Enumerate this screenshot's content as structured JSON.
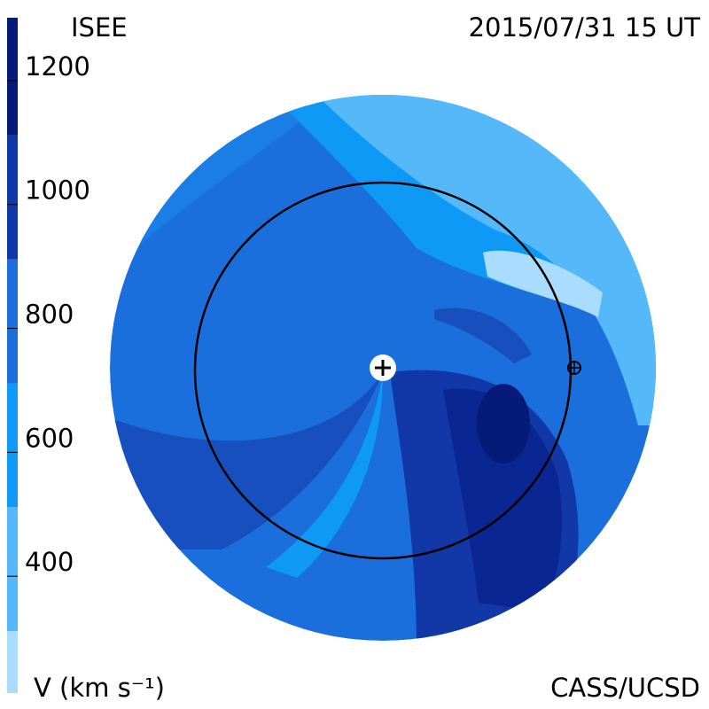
{
  "header": {
    "title": "ISEE",
    "timestamp": "2015/07/31 15 UT"
  },
  "footer": {
    "colorbar_label": "V (km s⁻¹)",
    "credit": "CASS/UCSD"
  },
  "colorbar": {
    "lim": [
      200,
      1290
    ],
    "ticks": [
      400,
      600,
      800,
      1000,
      1200
    ],
    "bounds": [
      200,
      300,
      500,
      700,
      900,
      1100,
      1290
    ],
    "colors": [
      "#aadcff",
      "#55b8f8",
      "#0d99f5",
      "#1a6fdc",
      "#1238a8",
      "#061a78"
    ]
  }
}
